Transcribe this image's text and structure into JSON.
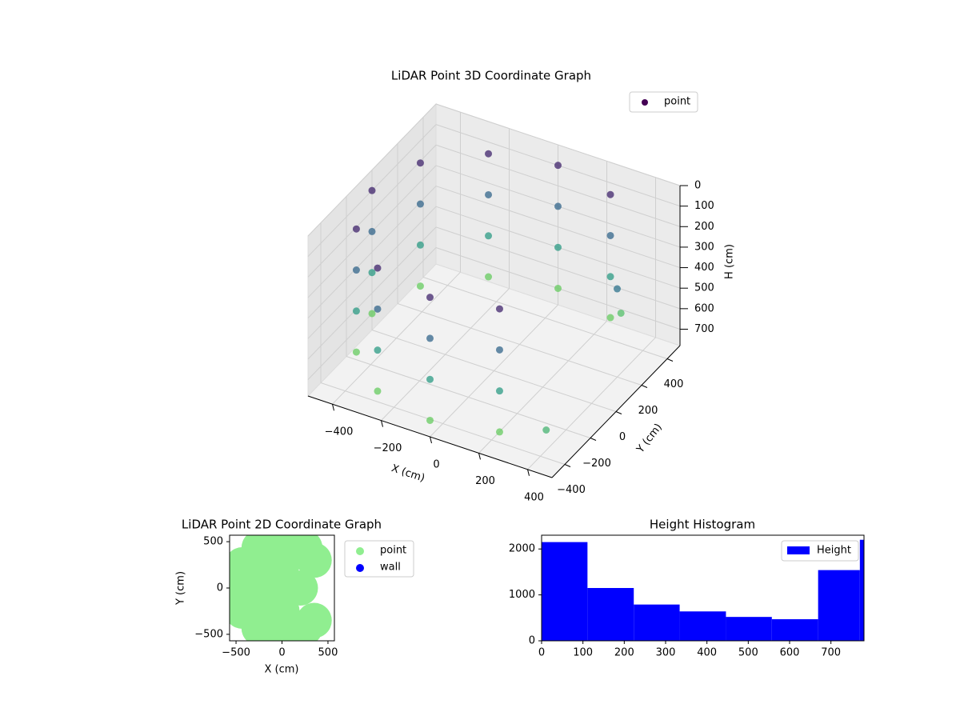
{
  "chart_data": [
    {
      "type": "scatter3d",
      "title": "LiDAR Point 3D Coordinate Graph",
      "x_label": "X (cm)",
      "y_label": "Y (cm)",
      "z_label": "H (cm)",
      "cmap": "viridis",
      "zinvert": true,
      "series": [
        {
          "name": "point",
          "color": "#440154",
          "x": [
            250,
            0,
            -250,
            -433,
            -500,
            -433,
            -250,
            0,
            250,
            250,
            0,
            -250,
            -433,
            -500,
            -433,
            -250,
            0,
            250,
            250,
            0,
            -250,
            -433,
            -500,
            -433,
            -250,
            0,
            250,
            250,
            0,
            -250,
            -433,
            -500,
            -433,
            -250,
            0,
            250,
            450,
            300,
            400
          ],
          "y": [
            433,
            500,
            433,
            250,
            0,
            -250,
            -433,
            -500,
            -433,
            433,
            500,
            433,
            250,
            0,
            -250,
            -433,
            -500,
            -433,
            433,
            500,
            433,
            250,
            0,
            -250,
            -433,
            -500,
            -433,
            433,
            500,
            433,
            250,
            0,
            -250,
            -433,
            -500,
            -433,
            -450,
            420,
            200
          ],
          "z": [
            100,
            100,
            100,
            100,
            100,
            100,
            100,
            100,
            100,
            300,
            300,
            300,
            300,
            300,
            300,
            300,
            300,
            300,
            500,
            500,
            500,
            500,
            500,
            500,
            500,
            500,
            500,
            700,
            700,
            700,
            700,
            700,
            700,
            700,
            700,
            700,
            600,
            650,
            350
          ]
        }
      ],
      "xlim": [
        -500,
        500
      ],
      "ylim": [
        -500,
        500
      ],
      "zlim": [
        0,
        780
      ],
      "xticks": [
        {
          "value": -400,
          "label": "−400"
        },
        {
          "value": -200,
          "label": "−200"
        },
        0,
        200,
        400
      ],
      "yticks": [
        {
          "value": -400,
          "label": "−400"
        },
        {
          "value": -200,
          "label": "−200"
        },
        0,
        200,
        400
      ],
      "zticks": [
        0,
        100,
        200,
        300,
        400,
        500,
        600,
        700
      ],
      "legend": "upper right"
    },
    {
      "type": "scatter",
      "title": "LiDAR Point 2D Coordinate Graph",
      "x_label": "X (cm)",
      "y_label": "Y (cm)",
      "series": [
        {
          "name": "point",
          "color": "#90ee90",
          "x": [
            250,
            0,
            -250,
            -433,
            -500,
            -433,
            -250,
            0,
            250,
            0,
            -250,
            -250,
            -250,
            0,
            0,
            200,
            350,
            350
          ],
          "y": [
            433,
            500,
            433,
            250,
            0,
            -250,
            -433,
            -500,
            -433,
            0,
            0,
            250,
            -250,
            250,
            -250,
            0,
            300,
            -350
          ]
        },
        {
          "name": "wall",
          "color": "#0000ff",
          "x": [],
          "y": []
        }
      ],
      "xlim": [
        -570,
        570
      ],
      "ylim": [
        -570,
        570
      ],
      "xticks": [
        {
          "value": -500,
          "label": "−500"
        },
        0,
        500
      ],
      "yticks": [
        {
          "value": -500,
          "label": "−500"
        },
        0,
        500
      ],
      "legend": "outside right"
    },
    {
      "type": "histogram",
      "title": "Height Histogram",
      "bins": [
        0,
        111,
        223,
        334,
        446,
        557,
        669,
        770,
        780
      ],
      "series": [
        {
          "name": "Height",
          "color": "#0000ff",
          "values": [
            2150,
            1150,
            790,
            640,
            520,
            470,
            1540,
            2200
          ]
        }
      ],
      "xlim": [
        0,
        780
      ],
      "ylim": [
        0,
        2300
      ],
      "xticks": [
        0,
        100,
        200,
        300,
        400,
        500,
        600,
        700
      ],
      "yticks": [
        0,
        1000,
        2000
      ],
      "legend": "upper right"
    }
  ]
}
